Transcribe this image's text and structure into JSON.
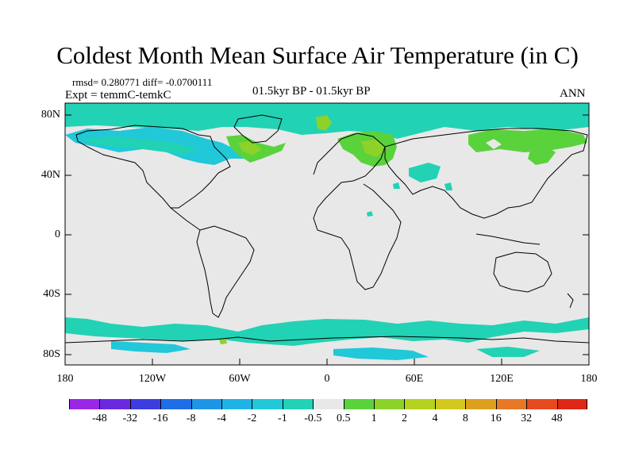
{
  "title": "Coldest Month Mean Surface Air Temperature (in C)",
  "stats": "rmsd= 0.280771 diff= -0.0700111",
  "expt": "Expt = temmC-temkC",
  "period": "01.5kyr BP - 01.5kyr BP",
  "season": "ANN",
  "lat_labels": [
    "80N",
    "40N",
    "0",
    "40S",
    "80S"
  ],
  "lon_labels": [
    "180",
    "120W",
    "60W",
    "0",
    "60E",
    "120E",
    "180"
  ],
  "colorbar": {
    "labels": [
      "-48",
      "-32",
      "-16",
      "-8",
      "-4",
      "-2",
      "-1",
      "-0.5",
      "0.5",
      "1",
      "2",
      "4",
      "8",
      "16",
      "32",
      "48"
    ],
    "colors": [
      "#9a27e6",
      "#6a28e0",
      "#3c3ce0",
      "#1e6ee6",
      "#1e96e6",
      "#20b4e6",
      "#20c8d8",
      "#22d2b4",
      "#e8e8e8",
      "#5ad23c",
      "#8cd228",
      "#b4d21e",
      "#d2c81e",
      "#dca01e",
      "#e67828",
      "#e64a1e",
      "#dc2814"
    ]
  },
  "colors": {
    "ocean_band": "#22d2b4",
    "land_neutral": "#e8e8e8",
    "warm1": "#5ad23c",
    "warm2": "#8cd228",
    "cool1": "#20c8d8"
  }
}
